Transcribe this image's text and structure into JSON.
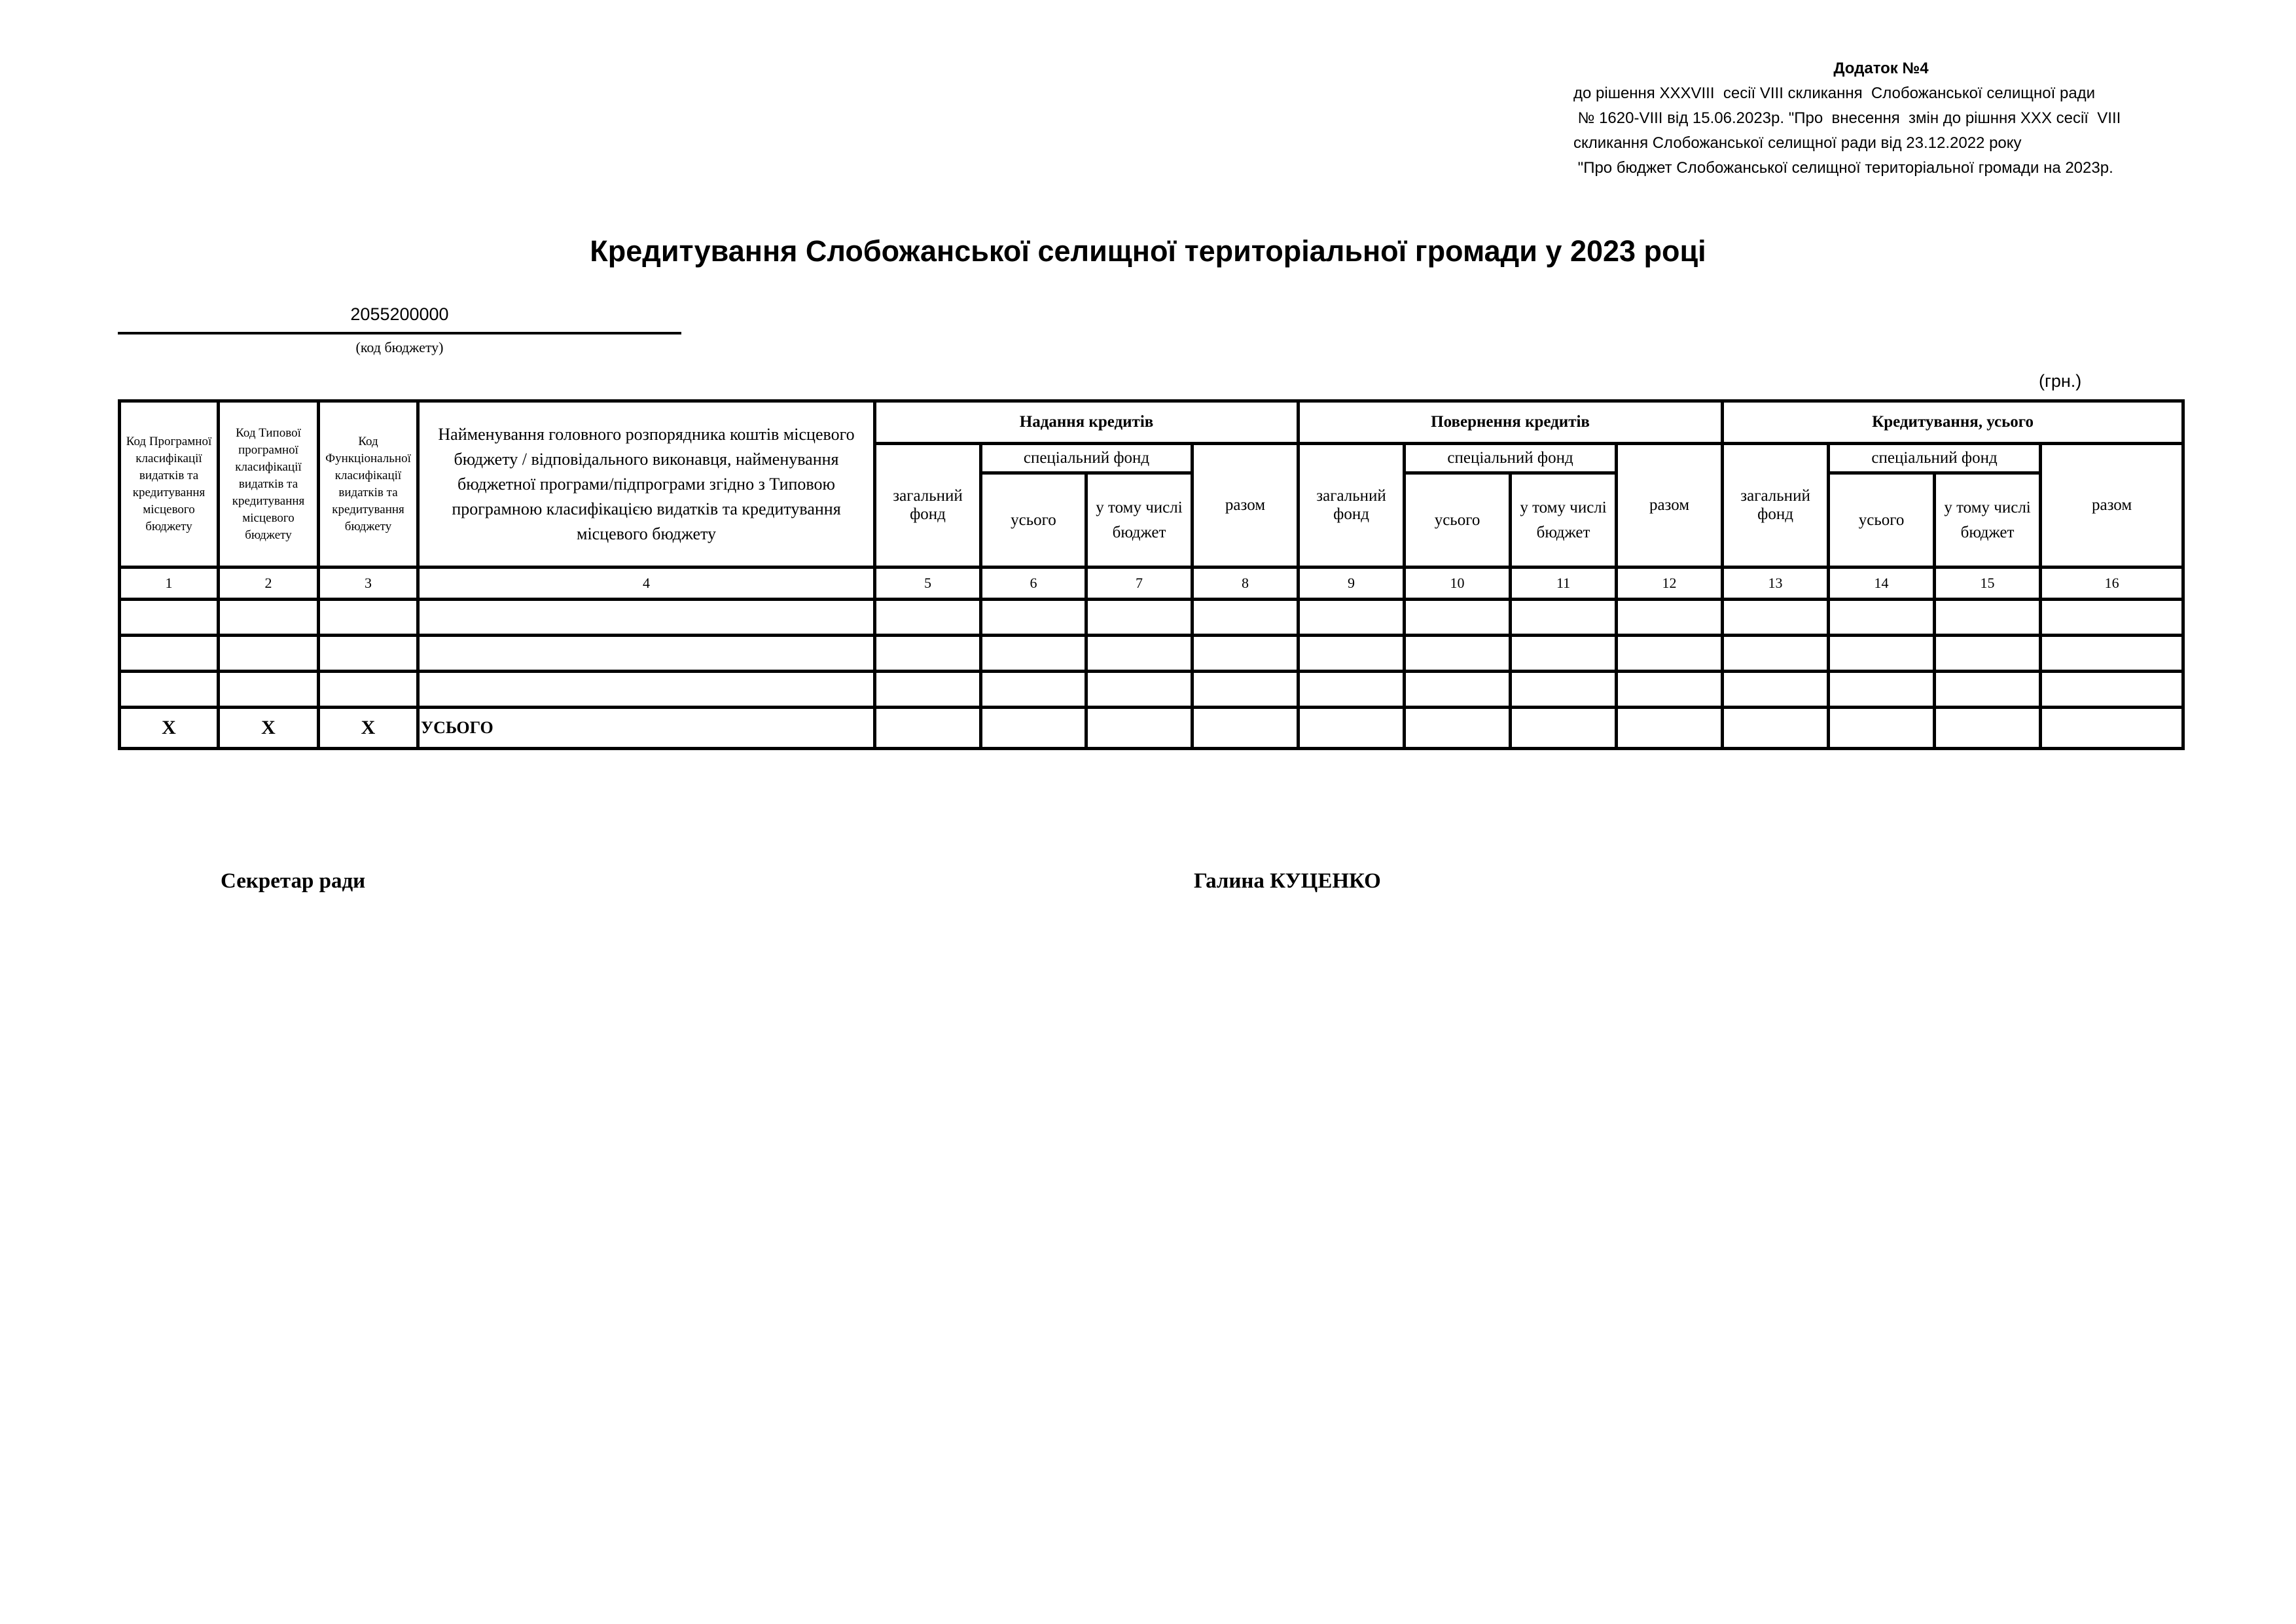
{
  "annex": {
    "title": "Додаток №4",
    "lines": [
      "до рішення XXXVIII  сесії VIII скликання  Слобожанської селищної ради",
      " № 1620-VIII від 15.06.2023р. \"Про  внесення  змін до рішння XXX сесії  VIII",
      "скликання Слобожанської селищної ради від 23.12.2022 року",
      " \"Про бюджет Слобожанської селищної територіальної громади на 2023р."
    ]
  },
  "title": "Кредитування Слобожанської селищної територіальної громади у 2023 році",
  "budget_code": "2055200000",
  "budget_code_label": "(код бюджету)",
  "unit": "(грн.)",
  "table": {
    "col1": "Код Програмної класифікації видатків та кредитування місцевого бюджету",
    "col2": "Код Типової програмної класифікації видатків та кредитування місцевого бюджету",
    "col3": "Код Функціональної класифікації видатків та кредитування бюджету",
    "col4": "Найменування головного розпорядника коштів місцевого бюджету / відповідального виконавця, найменування бюджетної програми/підпрограми згідно з Типовою програмною класифікацією видатків та кредитування місцевого бюджету",
    "groups": [
      "Надання кредитів",
      "Повернення кредитів",
      "Кредитування, усього"
    ],
    "general_fund": "загальний фонд",
    "special_fund": "спеціальний фонд",
    "total_sub": "усього",
    "incl_budget": "у тому числі бюджет",
    "sum": "разом",
    "numbers": [
      "1",
      "2",
      "3",
      "4",
      "5",
      "6",
      "7",
      "8",
      "9",
      "10",
      "11",
      "12",
      "13",
      "14",
      "15",
      "16"
    ],
    "total_row": {
      "x": "Х",
      "label": "УСЬОГО"
    }
  },
  "signature": {
    "position": "Секретар ради",
    "name": "Галина КУЦЕНКО"
  }
}
